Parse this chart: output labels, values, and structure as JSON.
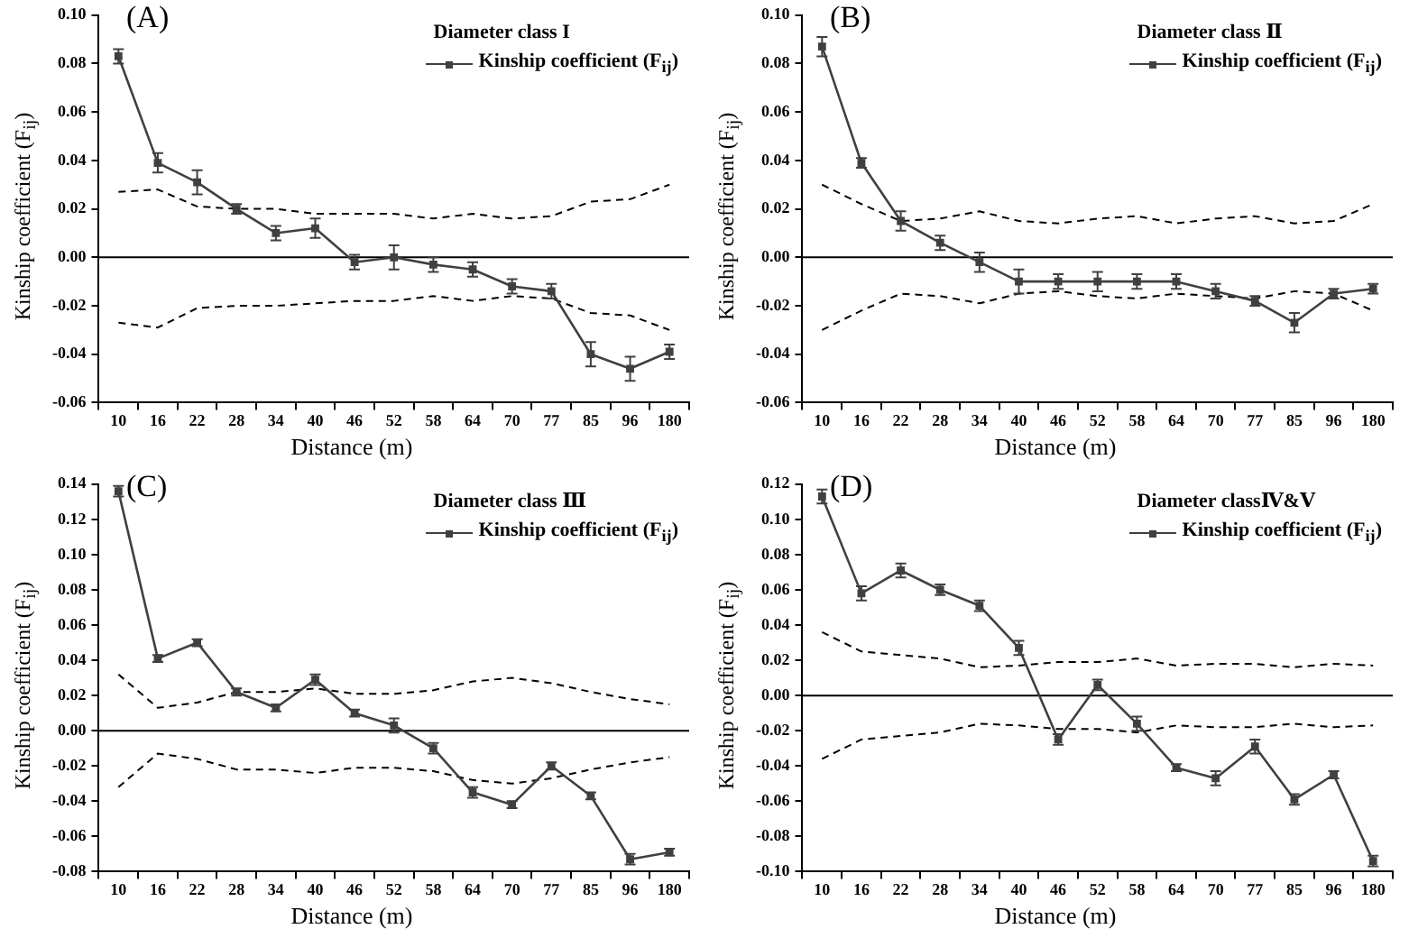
{
  "chart_data": [
    {
      "type": "line",
      "title": "(A)",
      "subtitle": "Diameter class I",
      "xlabel": "Distance (m)",
      "ylabel": "Kinship coefficient (F$_{ij}$)",
      "legend": "top right",
      "grid": false,
      "marker": "square",
      "categories": [
        "10",
        "16",
        "22",
        "28",
        "34",
        "40",
        "46",
        "52",
        "58",
        "64",
        "70",
        "77",
        "85",
        "96",
        "180"
      ],
      "ylim": [
        -0.06,
        0.1
      ],
      "yticks": [
        -0.06,
        -0.04,
        -0.02,
        {
          "value": 0,
          "label": "0.00"
        },
        0.02,
        0.04,
        0.06,
        0.08,
        {
          "value": 0.1,
          "label": "0.10"
        }
      ],
      "ref_lines": [
        {
          "axis": "y",
          "value": 0,
          "color": "#000000"
        }
      ],
      "series": [
        {
          "name": "Kinship coefficient (F$_{ij}$)",
          "color": "#404040",
          "values": [
            0.083,
            0.039,
            0.031,
            0.02,
            0.01,
            0.012,
            -0.002,
            0.0,
            -0.003,
            -0.005,
            -0.012,
            -0.014,
            -0.04,
            -0.046,
            -0.039
          ],
          "errors": [
            0.003,
            0.004,
            0.005,
            0.002,
            0.003,
            0.004,
            0.003,
            0.005,
            0.003,
            0.003,
            0.003,
            0.003,
            0.005,
            0.005,
            0.003
          ]
        },
        {
          "type": "line",
          "color": "#000000",
          "line_style": "dashed",
          "marker": "none",
          "values": [
            0.027,
            0.028,
            0.021,
            0.02,
            0.02,
            0.018,
            0.018,
            0.018,
            0.016,
            0.018,
            0.016,
            0.017,
            0.023,
            0.024,
            0.03
          ]
        },
        {
          "type": "line",
          "color": "#000000",
          "line_style": "dashed",
          "marker": "none",
          "values": [
            -0.027,
            -0.029,
            -0.021,
            -0.02,
            -0.02,
            -0.019,
            -0.018,
            -0.018,
            -0.016,
            -0.018,
            -0.016,
            -0.017,
            -0.023,
            -0.024,
            -0.03
          ]
        }
      ]
    },
    {
      "type": "line",
      "title": "(B)",
      "subtitle": "Diameter class Ⅱ",
      "xlabel": "Distance (m)",
      "ylabel": "Kinship coefficient (F$_{ij}$)",
      "legend": "top right",
      "grid": false,
      "marker": "square",
      "categories": [
        "10",
        "16",
        "22",
        "28",
        "34",
        "40",
        "46",
        "52",
        "58",
        "64",
        "70",
        "77",
        "85",
        "96",
        "180"
      ],
      "ylim": [
        -0.06,
        0.1
      ],
      "yticks": [
        -0.06,
        -0.04,
        -0.02,
        {
          "value": 0,
          "label": "0.00"
        },
        0.02,
        0.04,
        0.06,
        0.08,
        {
          "value": 0.1,
          "label": "0.10"
        }
      ],
      "ref_lines": [
        {
          "axis": "y",
          "value": 0,
          "color": "#000000"
        }
      ],
      "series": [
        {
          "name": "Kinship coefficient (F$_{ij}$)",
          "color": "#404040",
          "values": [
            0.087,
            0.039,
            0.015,
            0.006,
            -0.002,
            -0.01,
            -0.01,
            -0.01,
            -0.01,
            -0.01,
            -0.014,
            -0.018,
            -0.027,
            -0.015,
            -0.013
          ],
          "errors": [
            0.004,
            0.002,
            0.004,
            0.003,
            0.004,
            0.005,
            0.003,
            0.004,
            0.003,
            0.003,
            0.003,
            0.002,
            0.004,
            0.002,
            0.002
          ]
        },
        {
          "type": "line",
          "color": "#000000",
          "line_style": "dashed",
          "marker": "none",
          "values": [
            0.03,
            0.022,
            0.015,
            0.016,
            0.019,
            0.015,
            0.014,
            0.016,
            0.017,
            0.014,
            0.016,
            0.017,
            0.014,
            0.015,
            0.022
          ]
        },
        {
          "type": "line",
          "color": "#000000",
          "line_style": "dashed",
          "marker": "none",
          "values": [
            -0.03,
            -0.022,
            -0.015,
            -0.016,
            -0.019,
            -0.015,
            -0.014,
            -0.016,
            -0.017,
            -0.015,
            -0.016,
            -0.017,
            -0.014,
            -0.015,
            -0.022
          ]
        }
      ]
    },
    {
      "type": "line",
      "title": "(C)",
      "subtitle": "Diameter class Ⅲ",
      "xlabel": "Distance (m)",
      "ylabel": "Kinship coefficient (F$_{ij}$)",
      "legend": "top right",
      "grid": false,
      "marker": "square",
      "categories": [
        "10",
        "16",
        "22",
        "28",
        "34",
        "40",
        "46",
        "52",
        "58",
        "64",
        "70",
        "77",
        "85",
        "96",
        "180"
      ],
      "ref_lines": [
        {
          "axis": "y",
          "value": 0,
          "color": "#000000"
        }
      ],
      "ylim": [
        -0.08,
        0.14
      ],
      "yticks": [
        -0.08,
        -0.06,
        -0.04,
        -0.02,
        {
          "value": 0,
          "label": "0.00"
        },
        0.02,
        0.04,
        0.06,
        0.08,
        {
          "value": 0.1,
          "label": "0.10"
        },
        0.12,
        0.14
      ],
      "series": [
        {
          "name": "Kinship coefficient (F$_{ij}$)",
          "color": "#404040",
          "values": [
            0.136,
            0.041,
            0.05,
            0.022,
            0.013,
            0.029,
            0.01,
            0.003,
            -0.01,
            -0.035,
            -0.042,
            -0.02,
            -0.037,
            -0.073,
            -0.069
          ],
          "errors": [
            0.003,
            0.002,
            0.002,
            0.002,
            0.002,
            0.003,
            0.002,
            0.004,
            0.003,
            0.003,
            0.002,
            0.002,
            0.002,
            0.003,
            0.002
          ]
        },
        {
          "type": "line",
          "color": "#000000",
          "line_style": "dashed",
          "marker": "none",
          "values": [
            0.032,
            0.013,
            0.016,
            0.022,
            0.022,
            0.024,
            0.021,
            0.021,
            0.023,
            0.028,
            0.03,
            0.027,
            0.022,
            0.018,
            0.015
          ]
        },
        {
          "type": "line",
          "color": "#000000",
          "line_style": "dashed",
          "marker": "none",
          "values": [
            -0.032,
            -0.013,
            -0.016,
            -0.022,
            -0.022,
            -0.024,
            -0.021,
            -0.021,
            -0.023,
            -0.028,
            -0.03,
            -0.027,
            -0.022,
            -0.018,
            -0.015
          ]
        }
      ]
    },
    {
      "type": "line",
      "title": "(D)",
      "subtitle": "Diameter classⅣ&Ⅴ",
      "xlabel": "Distance (m)",
      "ylabel": "Kinship coefficient (F$_{ij}$)",
      "legend": "top right",
      "grid": false,
      "marker": "square",
      "categories": [
        "10",
        "16",
        "22",
        "28",
        "34",
        "40",
        "46",
        "52",
        "58",
        "64",
        "70",
        "77",
        "85",
        "96",
        "180"
      ],
      "ref_lines": [
        {
          "axis": "y",
          "value": 0,
          "color": "#000000"
        }
      ],
      "ylim": [
        -0.1,
        0.12
      ],
      "yticks": [
        {
          "value": -0.1,
          "label": "-0.10"
        },
        -0.08,
        -0.06,
        -0.04,
        -0.02,
        {
          "value": 0,
          "label": "0.00"
        },
        0.02,
        0.04,
        0.06,
        0.08,
        {
          "value": 0.1,
          "label": "0.10"
        },
        0.12
      ],
      "series": [
        {
          "name": "Kinship coefficient (F$_{ij}$)",
          "color": "#404040",
          "values": [
            0.113,
            0.058,
            0.071,
            0.06,
            0.051,
            0.027,
            -0.025,
            0.006,
            -0.016,
            -0.041,
            -0.047,
            -0.029,
            -0.059,
            -0.045,
            -0.094
          ],
          "errors": [
            0.004,
            0.004,
            0.004,
            0.003,
            0.003,
            0.004,
            0.003,
            0.003,
            0.004,
            0.002,
            0.004,
            0.004,
            0.003,
            0.002,
            0.003
          ]
        },
        {
          "type": "line",
          "color": "#000000",
          "line_style": "dashed",
          "marker": "none",
          "values": [
            0.036,
            0.025,
            0.023,
            0.021,
            0.016,
            0.017,
            0.019,
            0.019,
            0.021,
            0.017,
            0.018,
            0.018,
            0.016,
            0.018,
            0.017
          ]
        },
        {
          "type": "line",
          "color": "#000000",
          "line_style": "dashed",
          "marker": "none",
          "values": [
            -0.036,
            -0.025,
            -0.023,
            -0.021,
            -0.016,
            -0.017,
            -0.019,
            -0.019,
            -0.021,
            -0.017,
            -0.018,
            -0.018,
            -0.016,
            -0.018,
            -0.017
          ]
        }
      ]
    }
  ]
}
